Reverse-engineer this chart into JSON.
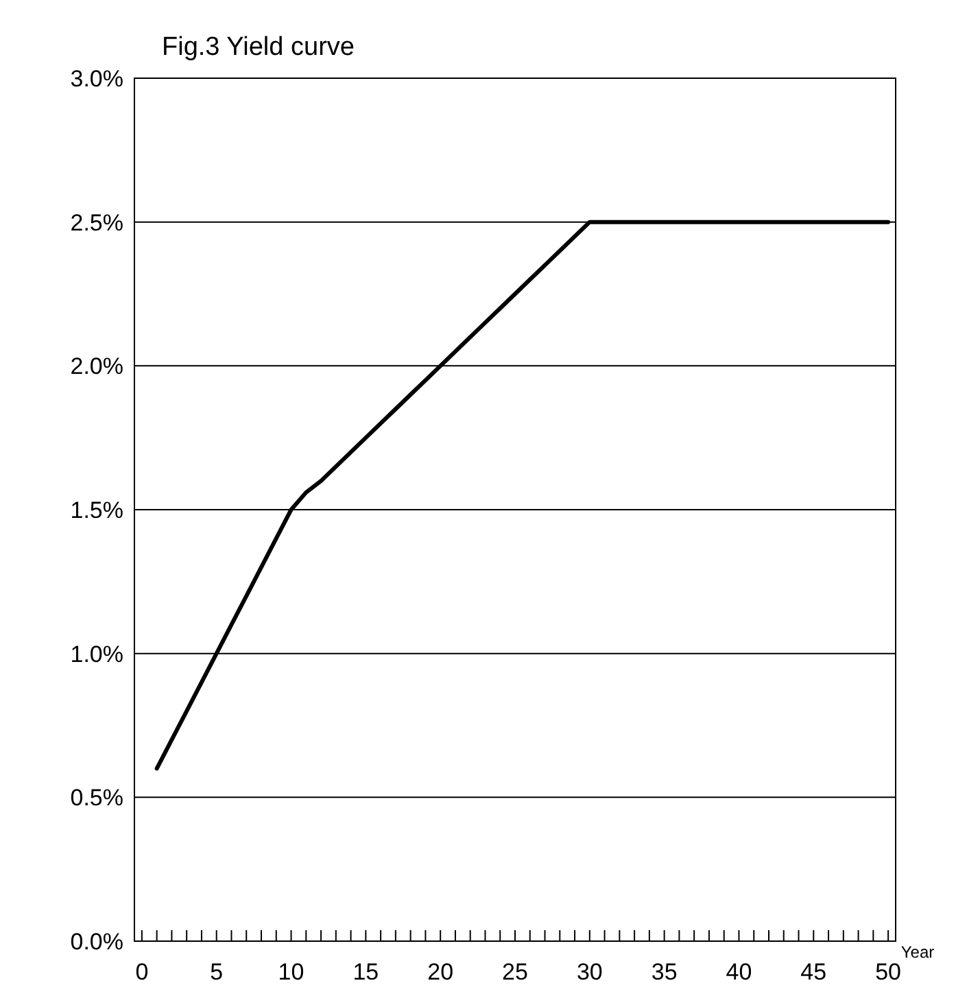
{
  "chart_data": {
    "type": "line",
    "title": "Fig.3  Yield curve",
    "xlabel": "Year",
    "x": [
      1,
      2,
      3,
      4,
      5,
      6,
      7,
      8,
      9,
      10,
      11,
      12,
      13,
      14,
      15,
      16,
      17,
      18,
      19,
      20,
      21,
      22,
      23,
      24,
      25,
      26,
      27,
      28,
      29,
      30,
      35,
      40,
      45,
      50
    ],
    "series": [
      {
        "color": "#000000",
        "values": [
          0.6,
          0.7,
          0.8,
          0.9,
          1.0,
          1.1,
          1.2,
          1.3,
          1.4,
          1.5,
          1.56,
          1.6,
          1.65,
          1.7,
          1.75,
          1.8,
          1.85,
          1.9,
          1.95,
          2.0,
          2.05,
          2.1,
          2.15,
          2.2,
          2.25,
          2.3,
          2.35,
          2.4,
          2.45,
          2.5,
          2.5,
          2.5,
          2.5,
          2.5
        ]
      }
    ],
    "xlim": [
      -0.5,
      50.5
    ],
    "xticks": [
      0,
      {
        "value": 1,
        "label": null
      },
      {
        "value": 2,
        "label": null
      },
      {
        "value": 3,
        "label": null
      },
      {
        "value": 4,
        "label": null
      },
      5,
      {
        "value": 6,
        "label": null
      },
      {
        "value": 7,
        "label": null
      },
      {
        "value": 8,
        "label": null
      },
      {
        "value": 9,
        "label": null
      },
      10,
      {
        "value": 11,
        "label": null
      },
      {
        "value": 12,
        "label": null
      },
      {
        "value": 13,
        "label": null
      },
      {
        "value": 14,
        "label": null
      },
      15,
      {
        "value": 16,
        "label": null
      },
      {
        "value": 17,
        "label": null
      },
      {
        "value": 18,
        "label": null
      },
      {
        "value": 19,
        "label": null
      },
      20,
      {
        "value": 21,
        "label": null
      },
      {
        "value": 22,
        "label": null
      },
      {
        "value": 23,
        "label": null
      },
      {
        "value": 24,
        "label": null
      },
      25,
      {
        "value": 26,
        "label": null
      },
      {
        "value": 27,
        "label": null
      },
      {
        "value": 28,
        "label": null
      },
      {
        "value": 29,
        "label": null
      },
      30,
      {
        "value": 31,
        "label": null
      },
      {
        "value": 32,
        "label": null
      },
      {
        "value": 33,
        "label": null
      },
      {
        "value": 34,
        "label": null
      },
      35,
      {
        "value": 36,
        "label": null
      },
      {
        "value": 37,
        "label": null
      },
      {
        "value": 38,
        "label": null
      },
      {
        "value": 39,
        "label": null
      },
      40,
      {
        "value": 41,
        "label": null
      },
      {
        "value": 42,
        "label": null
      },
      {
        "value": 43,
        "label": null
      },
      {
        "value": 44,
        "label": null
      },
      45,
      {
        "value": 46,
        "label": null
      },
      {
        "value": 47,
        "label": null
      },
      {
        "value": 48,
        "label": null
      },
      {
        "value": 49,
        "label": null
      },
      50
    ],
    "ylim": [
      0,
      3
    ],
    "yticks": [
      {
        "value": 0,
        "label": "0.0%"
      },
      {
        "value": 0.5,
        "label": "0.5%"
      },
      {
        "value": 1,
        "label": "1.0%"
      },
      {
        "value": 1.5,
        "label": "1.5%"
      },
      {
        "value": 2,
        "label": "2.0%"
      },
      {
        "value": 2.5,
        "label": "2.5%"
      },
      {
        "value": 3,
        "label": "3.0%"
      }
    ],
    "grid": "y",
    "marker": "none",
    "line_style": "solid"
  }
}
